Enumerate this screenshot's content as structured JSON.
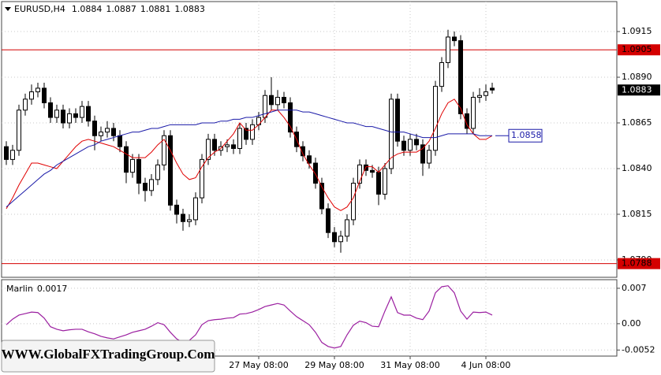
{
  "chart_data": {
    "type": "candlestick",
    "title": "EURUSD,H4",
    "open": [
      1.0852,
      1.0845,
      1.085,
      1.0872,
      1.0878,
      1.0882,
      1.0884,
      1.0876,
      1.0868,
      1.0872,
      1.0865,
      1.087,
      1.0868,
      1.0874,
      1.0866,
      1.0858,
      1.086,
      1.0862,
      1.0858,
      1.0852,
      1.0838,
      1.0845,
      1.0832,
      1.0828,
      1.0834,
      1.0842,
      1.0858,
      1.082,
      1.0815,
      1.0811,
      1.0812,
      1.0824,
      1.0845,
      1.0856,
      1.085,
      1.0852,
      1.0853,
      1.0851,
      1.0862,
      1.0856,
      1.0864,
      1.0868,
      1.088,
      1.0875,
      1.0879,
      1.0876,
      1.086,
      1.0852,
      1.0847,
      1.0843,
      1.0832,
      1.0818,
      1.0805,
      1.08,
      1.0803,
      1.0812,
      1.0832,
      1.0842,
      1.0839,
      1.0838,
      1.0826,
      1.084,
      1.0878,
      1.0855,
      1.085,
      1.0856,
      1.0853,
      1.0843,
      1.085,
      1.0885,
      1.0898,
      1.0912,
      1.091,
      1.087,
      1.0862,
      1.0879,
      1.088,
      1.0884
    ],
    "high": [
      1.0855,
      1.0853,
      1.0875,
      1.0881,
      1.0886,
      1.0887,
      1.0887,
      1.0879,
      1.0875,
      1.0875,
      1.0873,
      1.0873,
      1.0877,
      1.0877,
      1.0869,
      1.0863,
      1.0866,
      1.0865,
      1.0861,
      1.0855,
      1.0848,
      1.0848,
      1.0835,
      1.0837,
      1.0845,
      1.0861,
      1.0861,
      1.0823,
      1.0818,
      1.0815,
      1.0827,
      1.0848,
      1.0859,
      1.0859,
      1.0855,
      1.0856,
      1.0856,
      1.0865,
      1.0865,
      1.0867,
      1.0871,
      1.0883,
      1.089,
      1.0883,
      1.0882,
      1.0879,
      1.0863,
      1.0855,
      1.085,
      1.0846,
      1.0835,
      1.0821,
      1.0808,
      1.0806,
      1.0815,
      1.0835,
      1.0845,
      1.0845,
      1.0842,
      1.0841,
      1.0843,
      1.0881,
      1.0881,
      1.0858,
      1.0859,
      1.0859,
      1.0856,
      1.0853,
      1.0888,
      1.0901,
      1.0916,
      1.0915,
      1.0913,
      1.0873,
      1.0882,
      1.0884,
      1.0886,
      1.0887
    ],
    "low": [
      1.0842,
      1.0842,
      1.0847,
      1.0869,
      1.0875,
      1.0879,
      1.0873,
      1.0865,
      1.0865,
      1.0862,
      1.0862,
      1.0865,
      1.0865,
      1.0863,
      1.085,
      1.0855,
      1.0857,
      1.0855,
      1.0849,
      1.0832,
      1.0835,
      1.0826,
      1.0822,
      1.0825,
      1.0831,
      1.0839,
      1.0817,
      1.081,
      1.0806,
      1.0808,
      1.0809,
      1.0821,
      1.0842,
      1.0847,
      1.0847,
      1.0849,
      1.0848,
      1.0848,
      1.0853,
      1.0853,
      1.0861,
      1.0865,
      1.0872,
      1.0872,
      1.0873,
      1.0857,
      1.0849,
      1.0844,
      1.084,
      1.0829,
      1.0815,
      1.0802,
      1.0797,
      1.0794,
      1.08,
      1.0809,
      1.0829,
      1.0836,
      1.0835,
      1.082,
      1.0823,
      1.0837,
      1.0852,
      1.0847,
      1.0847,
      1.085,
      1.0836,
      1.084,
      1.0847,
      1.0882,
      1.0895,
      1.0907,
      1.0867,
      1.0859,
      1.0859,
      1.0876,
      1.0877,
      1.0881
    ],
    "close": [
      1.0845,
      1.085,
      1.0872,
      1.0878,
      1.0882,
      1.0884,
      1.0876,
      1.0868,
      1.0872,
      1.0865,
      1.087,
      1.0868,
      1.0874,
      1.0866,
      1.0858,
      1.086,
      1.0862,
      1.0858,
      1.0852,
      1.0838,
      1.0845,
      1.0832,
      1.0828,
      1.0834,
      1.0842,
      1.0858,
      1.082,
      1.0815,
      1.0811,
      1.0812,
      1.0824,
      1.0845,
      1.0856,
      1.085,
      1.0852,
      1.0853,
      1.0851,
      1.0862,
      1.0856,
      1.0864,
      1.0868,
      1.088,
      1.0875,
      1.0879,
      1.0876,
      1.086,
      1.0852,
      1.0847,
      1.0843,
      1.0832,
      1.0818,
      1.0805,
      1.08,
      1.0803,
      1.0812,
      1.0832,
      1.0842,
      1.0839,
      1.0838,
      1.0826,
      1.084,
      1.0878,
      1.0855,
      1.085,
      1.0856,
      1.0853,
      1.0843,
      1.085,
      1.0885,
      1.0898,
      1.0912,
      1.091,
      1.087,
      1.0862,
      1.0879,
      1.088,
      1.0882,
      1.0883
    ],
    "series": [
      {
        "color": "#e00000",
        "values": [
          1.0818,
          1.0824,
          1.0831,
          1.0837,
          1.0843,
          1.0843,
          1.0842,
          1.0841,
          1.084,
          1.0844,
          1.0848,
          1.0852,
          1.0855,
          1.0856,
          1.0855,
          1.0854,
          1.0853,
          1.0852,
          1.085,
          1.0848,
          1.0846,
          1.0846,
          1.0846,
          1.0849,
          1.0853,
          1.0856,
          1.085,
          1.0843,
          1.0837,
          1.0834,
          1.0835,
          1.0841,
          1.0846,
          1.0849,
          1.0851,
          1.0855,
          1.0859,
          1.0865,
          1.0861,
          1.0861,
          1.0864,
          1.0868,
          1.0872,
          1.0872,
          1.0868,
          1.0863,
          1.0856,
          1.0848,
          1.0842,
          1.0837,
          1.083,
          1.0824,
          1.0819,
          1.0817,
          1.0819,
          1.0824,
          1.0833,
          1.0841,
          1.0841,
          1.0838,
          1.0842,
          1.0846,
          1.0848,
          1.0849,
          1.0849,
          1.0849,
          1.0851,
          1.0855,
          1.0862,
          1.087,
          1.0876,
          1.0878,
          1.0873,
          1.0864,
          1.0859,
          1.0856,
          1.0856,
          1.0858
        ]
      },
      {
        "color": "#1a1aa8",
        "values": [
          1.0819,
          1.0822,
          1.0825,
          1.0828,
          1.0831,
          1.0834,
          1.0837,
          1.0839,
          1.0842,
          1.0844,
          1.0846,
          1.0848,
          1.085,
          1.0852,
          1.0853,
          1.0855,
          1.0856,
          1.0857,
          1.0858,
          1.0859,
          1.086,
          1.086,
          1.0861,
          1.0862,
          1.0862,
          1.0863,
          1.0864,
          1.0864,
          1.0864,
          1.0864,
          1.0864,
          1.0865,
          1.0865,
          1.0865,
          1.0866,
          1.0866,
          1.0867,
          1.0867,
          1.0868,
          1.0868,
          1.0869,
          1.087,
          1.0871,
          1.0872,
          1.0872,
          1.0872,
          1.0872,
          1.0871,
          1.0871,
          1.087,
          1.0869,
          1.0868,
          1.0867,
          1.0866,
          1.0865,
          1.0865,
          1.0864,
          1.0863,
          1.0863,
          1.0862,
          1.0861,
          1.086,
          1.086,
          1.086,
          1.0859,
          1.0858,
          1.0857,
          1.0857,
          1.0857,
          1.0858,
          1.0859,
          1.0859,
          1.0859,
          1.0859,
          1.0859,
          1.0858,
          1.0858,
          1.0858
        ]
      }
    ],
    "ylim": [
      1.07805,
      1.09314
    ],
    "yticks": [
      1.0915,
      {
        "value": 1.089,
        "label": "1.0890"
      },
      1.0865,
      {
        "value": 1.084,
        "label": "1.0840"
      },
      1.0815,
      {
        "value": 1.079,
        "label": "1.0790"
      }
    ],
    "xticks": [
      {
        "value": 40,
        "label": "27 May 08:00"
      },
      {
        "value": 52,
        "label": "29 May 08:00"
      },
      {
        "value": 64,
        "label": "31 May 08:00"
      },
      {
        "value": 76,
        "label": "4 Jun 08:00"
      }
    ],
    "grid": true,
    "hlines": [
      {
        "value": 1.0905,
        "color": "#d40000"
      },
      {
        "value": 1.0788,
        "color": "#d40000"
      }
    ],
    "indicator": {
      "name": "Marlin",
      "color": "#9b1fa0",
      "values": [
        -0.0002,
        0.0009,
        0.0017,
        0.002,
        0.0023,
        0.0022,
        0.0011,
        -0.0006,
        -0.0011,
        -0.0014,
        -0.0012,
        -0.0011,
        -0.0011,
        -0.0016,
        -0.002,
        -0.0025,
        -0.0028,
        -0.003,
        -0.0026,
        -0.0022,
        -0.0017,
        -0.0014,
        -0.0011,
        -0.0005,
        0.0002,
        -0.0002,
        -0.0017,
        -0.003,
        -0.0037,
        -0.0033,
        -0.0022,
        -0.0002,
        0.0006,
        0.0008,
        0.0009,
        0.0011,
        0.0012,
        0.0019,
        0.002,
        0.0023,
        0.0028,
        0.0034,
        0.0037,
        0.004,
        0.0037,
        0.0025,
        0.0014,
        0.0006,
        -0.0002,
        -0.0017,
        -0.0037,
        -0.0045,
        -0.0048,
        -0.0045,
        -0.0022,
        -0.0003,
        0.0005,
        0.0002,
        -0.0005,
        -0.0006,
        0.0025,
        0.0053,
        0.0022,
        0.0017,
        0.0017,
        0.0011,
        0.0008,
        0.0025,
        0.0061,
        0.0073,
        0.0075,
        0.0061,
        0.0025,
        0.0009,
        0.0023,
        0.0022,
        0.0023,
        0.0017
      ],
      "ylim": [
        -0.0064,
        0.0087
      ],
      "yticks": [
        0.007,
        {
          "value": 0,
          "label": "0.00"
        },
        -0.0052
      ]
    },
    "watermark": "WWW.GlobalFXTradingGroup.Com"
  }
}
